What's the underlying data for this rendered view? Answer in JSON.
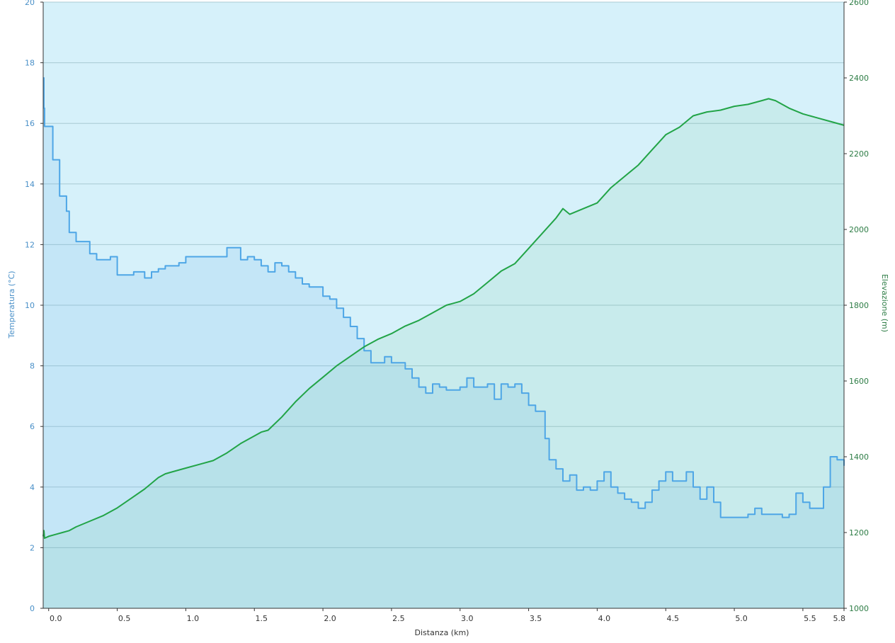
{
  "chart_data": {
    "type": "line",
    "xlabel": "Distanza  (km)",
    "x_ticks": [
      "0.0",
      "0.5",
      "1.0",
      "1.5",
      "2.0",
      "2.5",
      "3.0",
      "3.5",
      "4.0",
      "4.5",
      "5.0",
      "5.5",
      "5.8"
    ],
    "xlim": [
      -0.04,
      5.8
    ],
    "grid": true,
    "colors": {
      "temperature": "#4ea6e6",
      "elevation": "#22a447",
      "plot_background": "#d6f1fa",
      "axis_line": "#333333",
      "gridline": "#a9cad3"
    },
    "y_left": {
      "label": "Temperatura (°C)",
      "ylim": [
        0,
        20
      ],
      "ticks": [
        "0",
        "2",
        "4",
        "6",
        "8",
        "10",
        "12",
        "14",
        "16",
        "18",
        "20"
      ]
    },
    "y_right": {
      "label": "Elevazione (m)",
      "ylim": [
        1000,
        2600
      ],
      "ticks": [
        "1000",
        "1200",
        "1400",
        "1600",
        "1800",
        "2000",
        "2200",
        "2400",
        "2600"
      ]
    },
    "series": [
      {
        "axis": "left",
        "step": true,
        "x": [
          -0.04,
          -0.035,
          -0.03,
          0.03,
          0.08,
          0.13,
          0.15,
          0.2,
          0.3,
          0.35,
          0.45,
          0.5,
          0.55,
          0.62,
          0.7,
          0.75,
          0.8,
          0.85,
          0.95,
          1.0,
          1.05,
          1.15,
          1.3,
          1.4,
          1.45,
          1.5,
          1.55,
          1.6,
          1.65,
          1.7,
          1.75,
          1.8,
          1.85,
          1.9,
          2.0,
          2.05,
          2.1,
          2.15,
          2.2,
          2.25,
          2.3,
          2.35,
          2.45,
          2.5,
          2.6,
          2.65,
          2.7,
          2.75,
          2.8,
          2.85,
          2.9,
          3.0,
          3.05,
          3.1,
          3.15,
          3.2,
          3.25,
          3.3,
          3.35,
          3.4,
          3.45,
          3.5,
          3.55,
          3.6,
          3.62,
          3.65,
          3.7,
          3.75,
          3.8,
          3.85,
          3.9,
          3.95,
          4.0,
          4.05,
          4.1,
          4.15,
          4.2,
          4.25,
          4.3,
          4.35,
          4.4,
          4.45,
          4.5,
          4.55,
          4.65,
          4.7,
          4.75,
          4.8,
          4.85,
          4.9,
          5.05,
          5.1,
          5.15,
          5.2,
          5.25,
          5.35,
          5.4,
          5.45,
          5.5,
          5.55,
          5.6,
          5.65,
          5.7,
          5.75,
          5.8
        ],
        "values": [
          17.5,
          16.5,
          15.9,
          14.8,
          13.6,
          13.1,
          12.4,
          12.1,
          11.7,
          11.5,
          11.6,
          11.0,
          11.0,
          11.1,
          10.9,
          11.1,
          11.2,
          11.3,
          11.4,
          11.6,
          11.6,
          11.6,
          11.9,
          11.5,
          11.6,
          11.5,
          11.3,
          11.1,
          11.4,
          11.3,
          11.1,
          10.9,
          10.7,
          10.6,
          10.3,
          10.2,
          9.9,
          9.6,
          9.3,
          8.9,
          8.5,
          8.1,
          8.3,
          8.1,
          7.9,
          7.6,
          7.3,
          7.1,
          7.4,
          7.3,
          7.2,
          7.3,
          7.6,
          7.3,
          7.3,
          7.4,
          6.9,
          7.4,
          7.3,
          7.4,
          7.1,
          6.7,
          6.5,
          6.5,
          5.6,
          4.9,
          4.6,
          4.2,
          4.4,
          3.9,
          4.0,
          3.9,
          4.2,
          4.5,
          4.0,
          3.8,
          3.6,
          3.5,
          3.3,
          3.5,
          3.9,
          4.2,
          4.5,
          4.2,
          4.5,
          4.0,
          3.6,
          4.0,
          3.5,
          3.0,
          3.0,
          3.1,
          3.3,
          3.1,
          3.1,
          3.0,
          3.1,
          3.8,
          3.5,
          3.3,
          3.3,
          4.0,
          5.0,
          4.9,
          4.7
        ]
      },
      {
        "axis": "right",
        "step": false,
        "x": [
          -0.04,
          -0.035,
          -0.03,
          0.0,
          0.05,
          0.1,
          0.15,
          0.2,
          0.3,
          0.4,
          0.5,
          0.6,
          0.7,
          0.8,
          0.85,
          0.9,
          1.0,
          1.1,
          1.2,
          1.3,
          1.4,
          1.5,
          1.55,
          1.6,
          1.7,
          1.8,
          1.9,
          2.0,
          2.1,
          2.2,
          2.3,
          2.4,
          2.5,
          2.6,
          2.7,
          2.8,
          2.9,
          3.0,
          3.1,
          3.2,
          3.3,
          3.4,
          3.5,
          3.6,
          3.7,
          3.75,
          3.8,
          3.9,
          4.0,
          4.1,
          4.2,
          4.3,
          4.4,
          4.45,
          4.5,
          4.6,
          4.7,
          4.8,
          4.9,
          5.0,
          5.1,
          5.2,
          5.25,
          5.3,
          5.4,
          5.5,
          5.6,
          5.7,
          5.8
        ],
        "values": [
          1190,
          1205,
          1185,
          1190,
          1195,
          1200,
          1205,
          1215,
          1230,
          1245,
          1265,
          1290,
          1315,
          1345,
          1355,
          1360,
          1370,
          1380,
          1390,
          1410,
          1435,
          1455,
          1465,
          1470,
          1505,
          1545,
          1580,
          1610,
          1640,
          1665,
          1690,
          1710,
          1725,
          1745,
          1760,
          1780,
          1800,
          1810,
          1830,
          1860,
          1890,
          1910,
          1950,
          1990,
          2030,
          2055,
          2040,
          2055,
          2070,
          2110,
          2140,
          2170,
          2210,
          2230,
          2250,
          2270,
          2300,
          2310,
          2315,
          2325,
          2330,
          2340,
          2345,
          2340,
          2320,
          2305,
          2295,
          2285,
          2275
        ]
      }
    ]
  }
}
